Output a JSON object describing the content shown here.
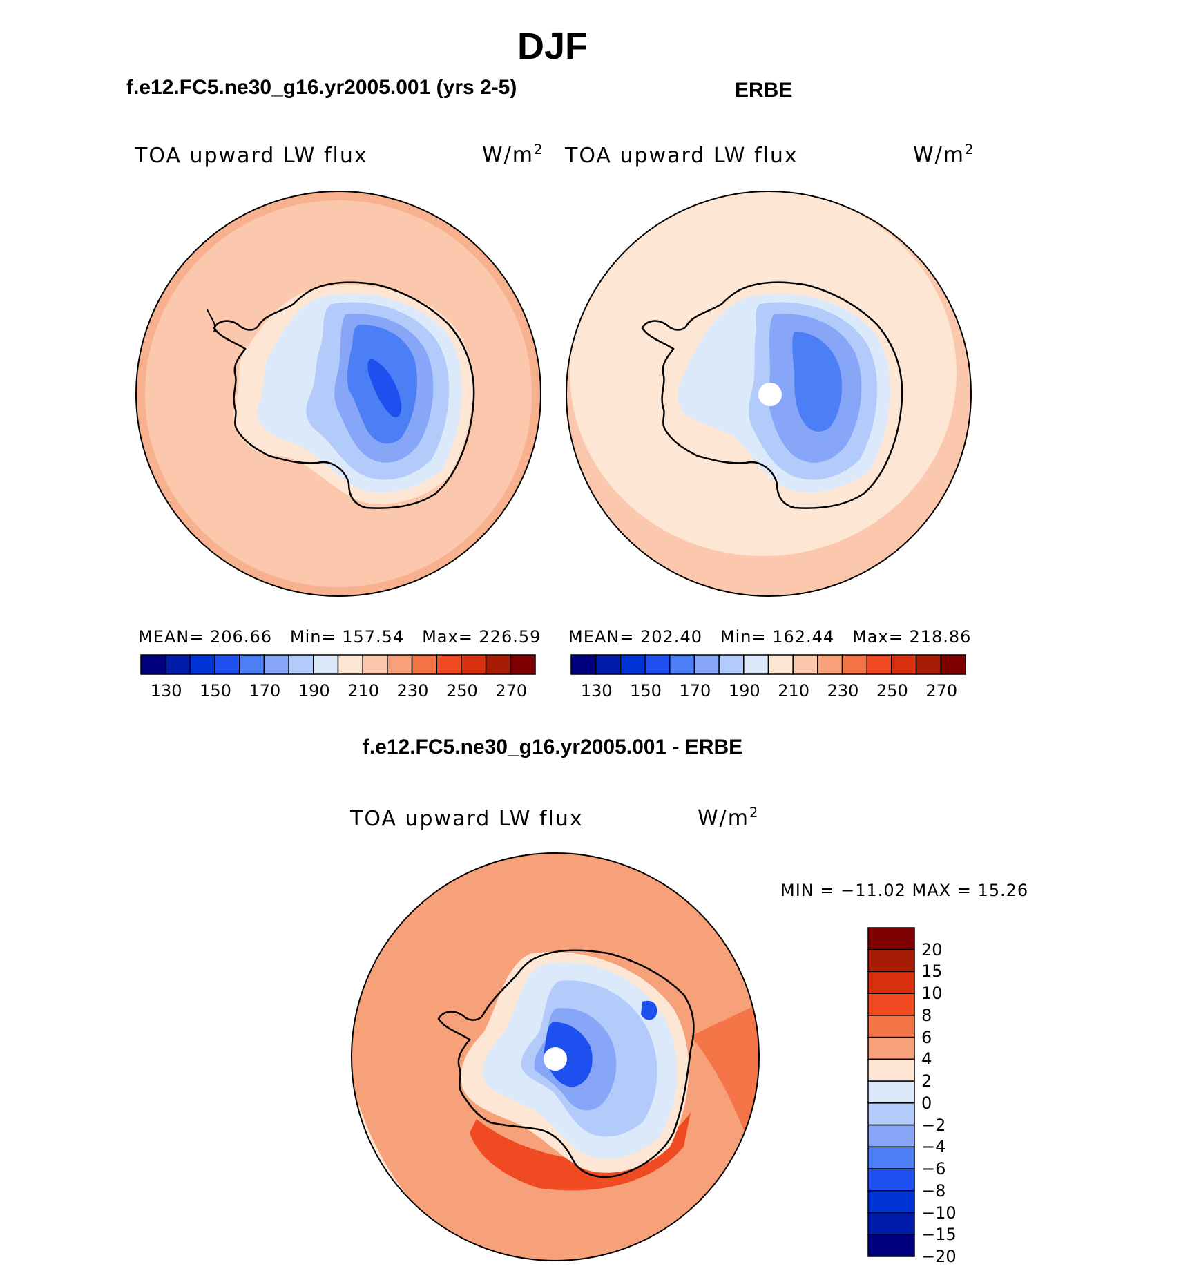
{
  "figure": {
    "title": "DJF",
    "panels": [
      {
        "id": "model",
        "title": "f.e12.FC5.ne30_g16.yr2005.001 (yrs 2-5)",
        "variable": "TOA upward LW flux",
        "units_base": "W/m",
        "units_exp": "2",
        "mean_label": "MEAN=",
        "mean_value": "206.66",
        "min_label": "Min=",
        "min_value": "157.54",
        "max_label": "Max=",
        "max_value": "226.59"
      },
      {
        "id": "obs",
        "title": "ERBE",
        "variable": "TOA upward LW flux",
        "units_base": "W/m",
        "units_exp": "2",
        "mean_label": "MEAN=",
        "mean_value": "202.40",
        "min_label": "Min=",
        "min_value": "162.44",
        "max_label": "Max=",
        "max_value": "218.86"
      },
      {
        "id": "difference",
        "title": "f.e12.FC5.ne30_g16.yr2005.001 - ERBE",
        "variable": "TOA upward LW flux",
        "units_base": "W/m",
        "units_exp": "2",
        "min_text": "MIN = −11.02 MAX =  15.26"
      }
    ],
    "colorbar_main": {
      "ticks": [
        "130",
        "150",
        "170",
        "190",
        "210",
        "230",
        "250",
        "270"
      ],
      "colors": [
        "#00007f",
        "#001cab",
        "#0033d6",
        "#1e50f0",
        "#4c7ef5",
        "#87a6f7",
        "#b3cbfa",
        "#dbe9fb",
        "#fde6d3",
        "#fbc8ad",
        "#f7a17a",
        "#f47547",
        "#ef4a21",
        "#d7300f",
        "#a61c05",
        "#7f0000"
      ]
    },
    "colorbar_diff": {
      "ticks": [
        "20",
        "15",
        "10",
        "8",
        "6",
        "4",
        "2",
        "0",
        "−2",
        "−4",
        "−6",
        "−8",
        "−10",
        "−15",
        "−20"
      ],
      "colors": [
        "#7f0000",
        "#a61c05",
        "#d7300f",
        "#ef4a21",
        "#f47547",
        "#f7a17a",
        "#fde6d3",
        "#dbe9fb",
        "#b3cbfa",
        "#87a6f7",
        "#4c7ef5",
        "#1e50f0",
        "#0033d6",
        "#001cab",
        "#00007f"
      ]
    }
  }
}
